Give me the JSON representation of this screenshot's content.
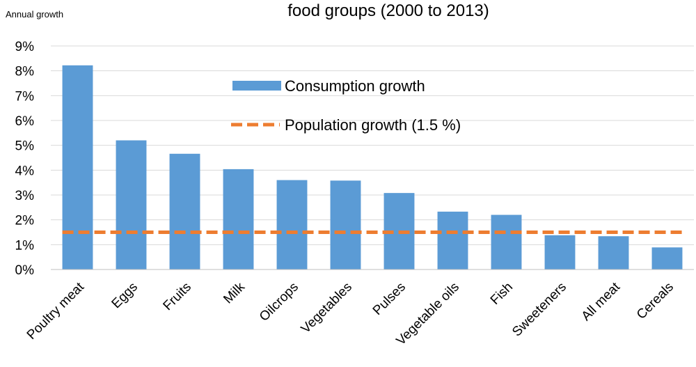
{
  "chart_data": {
    "type": "bar",
    "title": "food groups (2000 to 2013)",
    "ylabel": "Annual growth",
    "xlabel": "",
    "ylim": [
      0,
      9
    ],
    "yticks": [
      "0%",
      "1%",
      "2%",
      "3%",
      "4%",
      "5%",
      "6%",
      "7%",
      "8%",
      "9%"
    ],
    "grid": "horizontal",
    "legend_position": "top-center",
    "categories": [
      "Poultry meat",
      "Eggs",
      "Fruits",
      "Milk",
      "Oilcrops",
      "Vegetables",
      "Pulses",
      "Vegetable oils",
      "Fish",
      "Sweeteners",
      "All meat",
      "Cereals"
    ],
    "series": [
      {
        "name": "Consumption growth",
        "type": "bar",
        "color": "#5b9bd5",
        "values": [
          8.22,
          5.2,
          4.66,
          4.04,
          3.6,
          3.58,
          3.08,
          2.33,
          2.2,
          1.38,
          1.34,
          0.89
        ]
      },
      {
        "name": "Population growth (1.5 %)",
        "type": "line",
        "style": "dashed",
        "color": "#ed7d31",
        "value": 1.5
      }
    ]
  }
}
